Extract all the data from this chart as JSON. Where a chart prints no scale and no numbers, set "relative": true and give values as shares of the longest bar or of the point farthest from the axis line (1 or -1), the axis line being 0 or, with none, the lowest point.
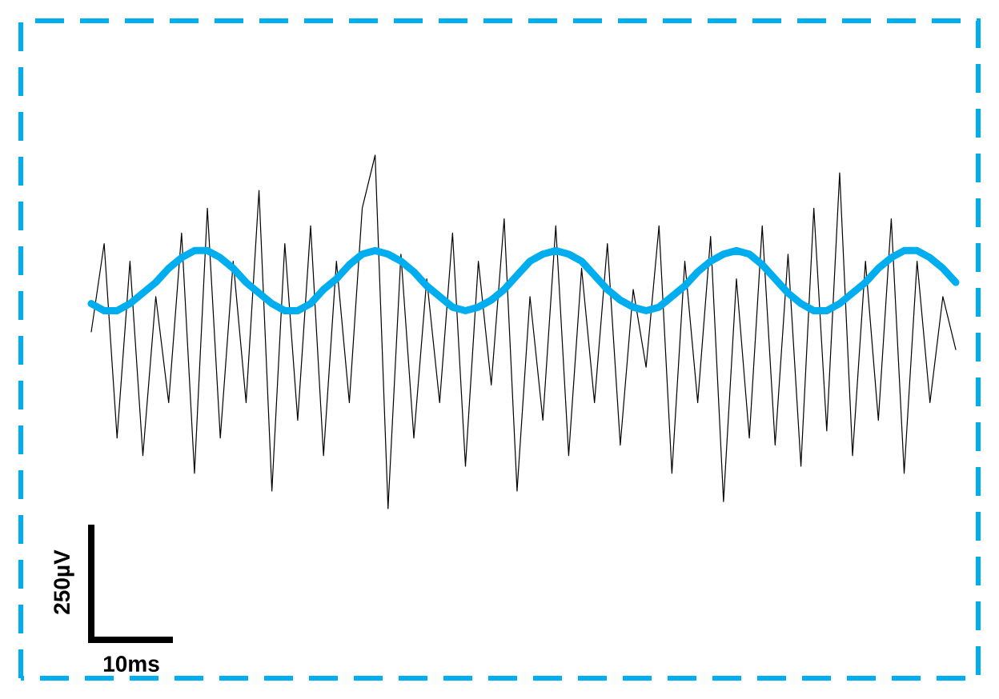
{
  "chart_data": {
    "type": "line",
    "relative": true,
    "categories": [
      null,
      null,
      null,
      null,
      null,
      null,
      null,
      null,
      null,
      null,
      null,
      null,
      null,
      null,
      null,
      null,
      null,
      null,
      null,
      null,
      null,
      null,
      null,
      null,
      null,
      null,
      null,
      null,
      null,
      null,
      null,
      null,
      null,
      null,
      null,
      null,
      null,
      null,
      null,
      null,
      null,
      null,
      null,
      null,
      null,
      null,
      null,
      null,
      null,
      null,
      null,
      null,
      null,
      null,
      null,
      null,
      null,
      null,
      null,
      null,
      null,
      null,
      null,
      null,
      null,
      null,
      null,
      null
    ],
    "series": [
      {
        "color": "#000000",
        "values": [
          0.5,
          0.75,
          0.2,
          0.7,
          0.15,
          0.6,
          0.3,
          0.78,
          0.1,
          0.85,
          0.2,
          0.7,
          0.3,
          0.9,
          0.05,
          0.75,
          0.25,
          0.8,
          0.15,
          0.7,
          0.3,
          0.85,
          1,
          0,
          0.72,
          0.2,
          0.65,
          0.3,
          0.78,
          0.12,
          0.7,
          0.35,
          0.82,
          0.05,
          0.6,
          0.25,
          0.8,
          0.15,
          0.68,
          0.3,
          0.75,
          0.18,
          0.62,
          0.4,
          0.8,
          0.1,
          0.7,
          0.3,
          0.77,
          0.02,
          0.65,
          0.2,
          0.8,
          0.18,
          0.72,
          0.12,
          0.85,
          0.22,
          0.95,
          0.15,
          0.7,
          0.25,
          0.82,
          0.1,
          0.7,
          0.3,
          0.6,
          0.45
        ]
      },
      {
        "color": "#00aeef",
        "values": [
          0.58,
          0.56,
          0.56,
          0.58,
          0.61,
          0.64,
          0.68,
          0.71,
          0.73,
          0.73,
          0.71,
          0.68,
          0.64,
          0.61,
          0.58,
          0.56,
          0.56,
          0.58,
          0.62,
          0.65,
          0.69,
          0.72,
          0.73,
          0.72,
          0.7,
          0.67,
          0.63,
          0.6,
          0.57,
          0.56,
          0.57,
          0.59,
          0.62,
          0.66,
          0.7,
          0.72,
          0.73,
          0.72,
          0.7,
          0.66,
          0.62,
          0.59,
          0.57,
          0.56,
          0.57,
          0.6,
          0.63,
          0.67,
          0.7,
          0.72,
          0.73,
          0.72,
          0.69,
          0.65,
          0.61,
          0.58,
          0.56,
          0.56,
          0.58,
          0.61,
          0.64,
          0.68,
          0.71,
          0.73,
          0.73,
          0.71,
          0.68,
          0.64
        ]
      }
    ],
    "annotations": [
      "250µV",
      "10ms"
    ]
  }
}
